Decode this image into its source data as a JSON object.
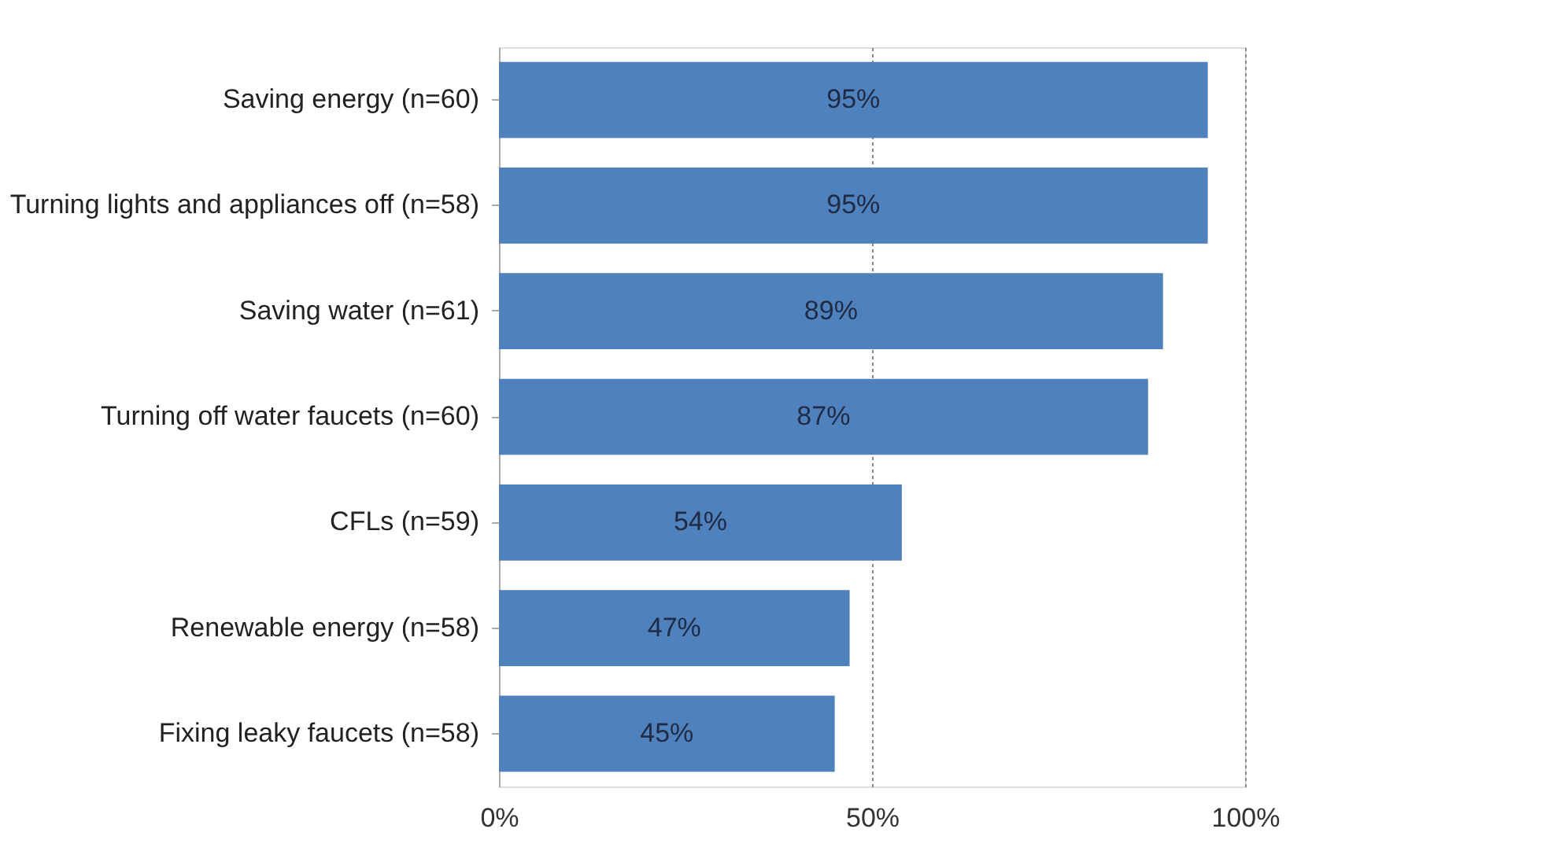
{
  "chart_data": {
    "type": "bar",
    "orientation": "horizontal",
    "categories": [
      "Saving energy (n=60)",
      "Turning lights and appliances off (n=58)",
      "Saving water (n=61)",
      "Turning off water faucets (n=60)",
      "CFLs (n=59)",
      "Renewable energy (n=58)",
      "Fixing leaky faucets (n=58)"
    ],
    "values": [
      95,
      95,
      89,
      87,
      54,
      47,
      45
    ],
    "value_labels": [
      "95%",
      "95%",
      "89%",
      "87%",
      "54%",
      "47%",
      "45%"
    ],
    "color": "#4f81bd",
    "xlim": [
      0,
      100
    ],
    "xticks": [
      {
        "value": 0,
        "label": "0%"
      },
      {
        "value": 50,
        "label": "50%"
      },
      {
        "value": 100,
        "label": "100%"
      }
    ],
    "grid": "x"
  }
}
